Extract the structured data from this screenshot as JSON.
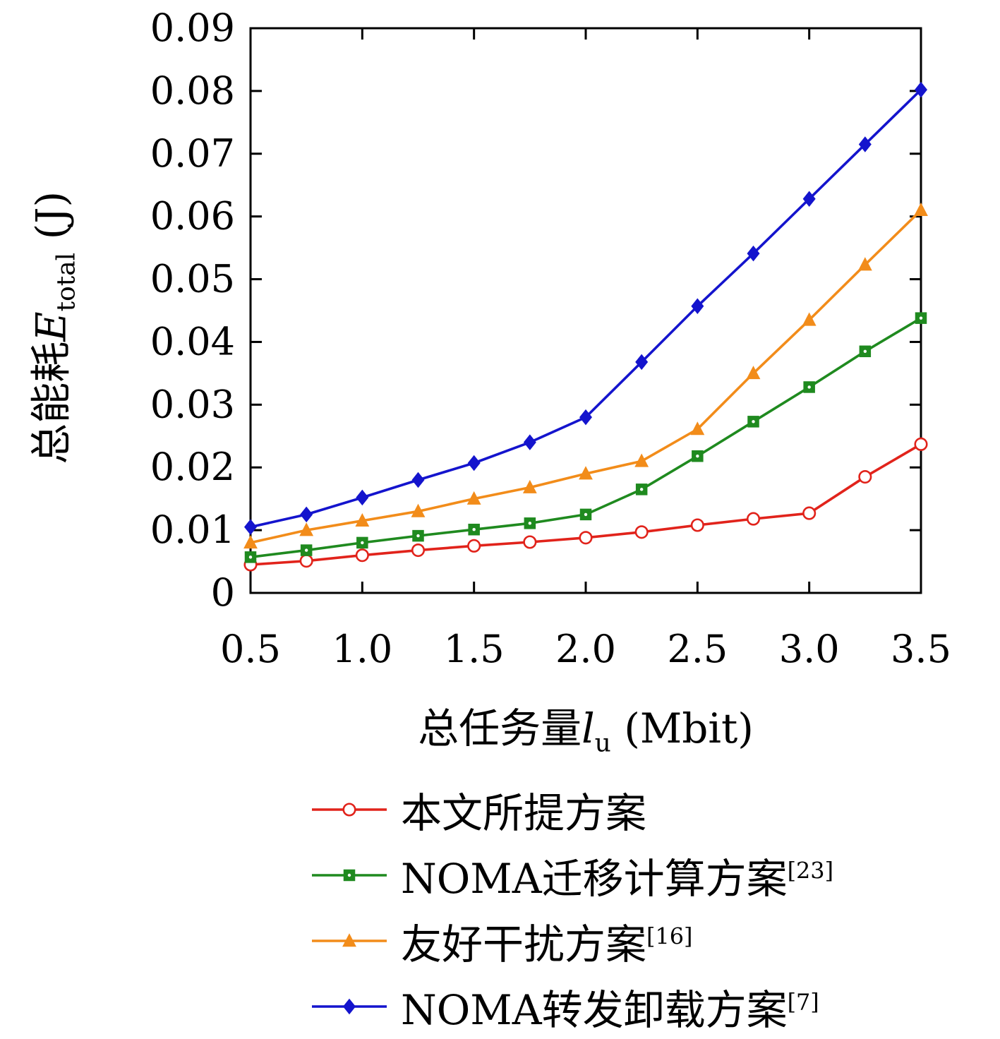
{
  "chart_data": {
    "type": "line",
    "title": "",
    "x": [
      0.5,
      0.75,
      1.0,
      1.25,
      1.5,
      1.75,
      2.0,
      2.25,
      2.5,
      2.75,
      3.0,
      3.25,
      3.5
    ],
    "series": [
      {
        "name": "本文所提方案",
        "ref": "",
        "color": "#e1231b",
        "marker": "circle-open",
        "values": [
          0.0045,
          0.0051,
          0.006,
          0.0068,
          0.0075,
          0.0081,
          0.0088,
          0.0097,
          0.0108,
          0.0118,
          0.0127,
          0.0185,
          0.0237
        ]
      },
      {
        "name": "NOMA迁移计算方案",
        "ref": "[23]",
        "color": "#1f8a1f",
        "marker": "square",
        "values": [
          0.0057,
          0.0068,
          0.008,
          0.0091,
          0.0101,
          0.0111,
          0.0125,
          0.0165,
          0.0218,
          0.0273,
          0.0328,
          0.0385,
          0.0438
        ]
      },
      {
        "name": "友好干扰方案",
        "ref": "[16]",
        "color": "#f28c1a",
        "marker": "triangle",
        "values": [
          0.008,
          0.01,
          0.0115,
          0.013,
          0.015,
          0.0168,
          0.019,
          0.021,
          0.0261,
          0.035,
          0.0435,
          0.0523,
          0.061
        ]
      },
      {
        "name": "NOMA转发卸载方案",
        "ref": "[7]",
        "color": "#1414cd",
        "marker": "diamond",
        "values": [
          0.0105,
          0.0125,
          0.0152,
          0.018,
          0.0207,
          0.024,
          0.028,
          0.0368,
          0.0457,
          0.0541,
          0.0628,
          0.0715,
          0.0802
        ]
      }
    ],
    "xlabel": {
      "prefix": "总任务量",
      "var": "l",
      "sub": "u",
      "unit": " (Mbit)"
    },
    "ylabel": {
      "prefix": "总能耗",
      "var": "E",
      "sub": "total",
      "unit": " (J)"
    },
    "xlim": [
      0.5,
      3.5
    ],
    "ylim": [
      0,
      0.09
    ],
    "xticks": [
      "0.5",
      "1.0",
      "1.5",
      "2.0",
      "2.5",
      "3.0",
      "3.5"
    ],
    "yticks": [
      "0",
      "0.01",
      "0.02",
      "0.03",
      "0.04",
      "0.05",
      "0.06",
      "0.07",
      "0.08",
      "0.09"
    ],
    "grid": "off",
    "legend_position": "below-left"
  }
}
